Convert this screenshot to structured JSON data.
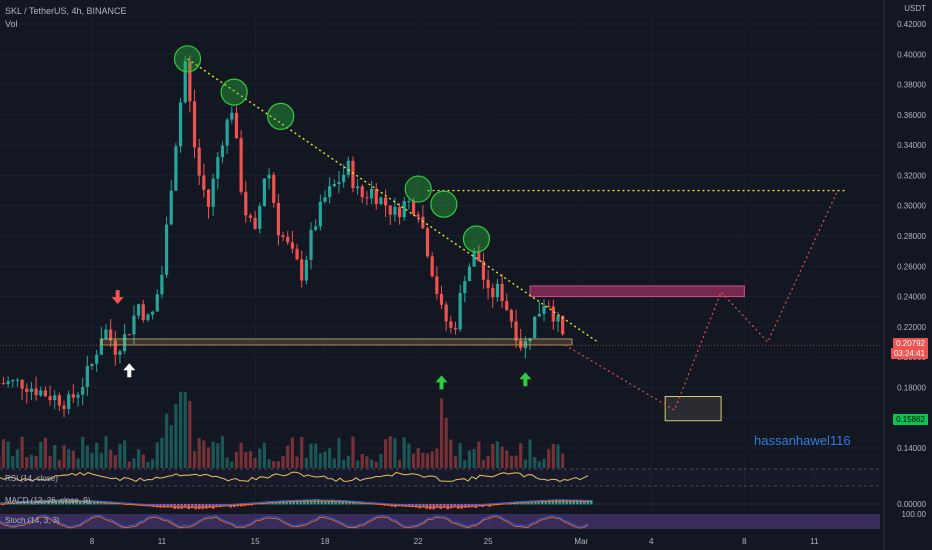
{
  "header": {
    "title": "SKL / TetherUS, 4h, BINANCE",
    "volume_label": "Vol",
    "unit": "USDT"
  },
  "signature": "hassanhawel116",
  "colors": {
    "background": "#131722",
    "bull": "#26a69a",
    "bear": "#ef5350",
    "trendline": "#e6e62e",
    "target_path": "#e05050",
    "price_tag": "#ef5350",
    "target_tag": "#00c853",
    "resistance_box": "#9b2d5e",
    "circle": "#2ecc40"
  },
  "price_tags": [
    {
      "value": "0.20792",
      "countdown": "03:24:41"
    },
    {
      "value": "0.15862"
    }
  ],
  "chart_data": {
    "type": "candlestick",
    "y_axis": {
      "ylim": [
        0.12,
        0.42
      ],
      "ticks": [
        "0.42000",
        "0.40000",
        "0.38000",
        "0.36000",
        "0.34000",
        "0.32000",
        "0.30000",
        "0.28000",
        "0.26000",
        "0.24000",
        "0.22000",
        "0.20000",
        "0.18000",
        "0.16000",
        "0.14000"
      ]
    },
    "x_axis": {
      "tick_labels": [
        "8",
        "11",
        "15",
        "18",
        "22",
        "25",
        "Mar",
        "4",
        "8",
        "11"
      ]
    },
    "price_path": [
      [
        "Feb 5",
        0.183
      ],
      [
        "Feb 6",
        0.176
      ],
      [
        "Feb 7",
        0.17
      ],
      [
        "Feb 7.5",
        0.18
      ],
      [
        "Feb 8",
        0.195
      ],
      [
        "Feb 8.5",
        0.22
      ],
      [
        "Feb 9",
        0.206
      ],
      [
        "Feb 9.5",
        0.215
      ],
      [
        "Feb 10",
        0.235
      ],
      [
        "Feb 10.5",
        0.222
      ],
      [
        "Feb 11",
        0.255
      ],
      [
        "Feb 11.5",
        0.33
      ],
      [
        "Feb 12",
        0.395
      ],
      [
        "Feb 12.5",
        0.325
      ],
      [
        "Feb 13",
        0.3
      ],
      [
        "Feb 13.5",
        0.34
      ],
      [
        "Feb 14",
        0.365
      ],
      [
        "Feb 14.5",
        0.3
      ],
      [
        "Feb 15",
        0.28
      ],
      [
        "Feb 15.5",
        0.33
      ],
      [
        "Feb 16",
        0.285
      ],
      [
        "Feb 17",
        0.255
      ],
      [
        "Feb 17.5",
        0.285
      ],
      [
        "Feb 18",
        0.305
      ],
      [
        "Feb 19",
        0.325
      ],
      [
        "Feb 19.5",
        0.305
      ],
      [
        "Feb 20",
        0.31
      ],
      [
        "Feb 21",
        0.295
      ],
      [
        "Feb 21.5",
        0.303
      ],
      [
        "Feb 22",
        0.298
      ],
      [
        "Feb 22.5",
        0.265
      ],
      [
        "Feb 23",
        0.23
      ],
      [
        "Feb 23.5",
        0.215
      ],
      [
        "Feb 24",
        0.255
      ],
      [
        "Feb 24.5",
        0.27
      ],
      [
        "Feb 25",
        0.24
      ],
      [
        "Feb 25.5",
        0.245
      ],
      [
        "Feb 26",
        0.225
      ],
      [
        "Feb 26.5",
        0.205
      ],
      [
        "Feb 27",
        0.225
      ],
      [
        "Feb 27.5",
        0.24
      ],
      [
        "Feb 28",
        0.222
      ],
      [
        "Feb 28.3",
        0.208
      ]
    ],
    "annotations": {
      "highs_circled": 6,
      "descending_trendline": "from Feb 12 high to Feb 29 near 0.210",
      "support_zone": [
        0.208,
        0.212
      ],
      "horizontal_line": 0.31,
      "resistance_zone": [
        0.24,
        0.247
      ],
      "target_box": [
        0.158,
        0.174
      ],
      "projected_path": [
        [
          "Mar 4",
          0.165
        ],
        [
          "Mar 6",
          0.243
        ],
        [
          "Mar 8",
          0.21
        ],
        [
          "Mar 11",
          0.31
        ]
      ],
      "up_arrows": [
        "Feb 9.5",
        "Feb 23",
        "Feb 26.5"
      ],
      "down_arrows": [
        "Feb 9"
      ]
    },
    "indicators": [
      {
        "name": "RSI (14, close)"
      },
      {
        "name": "MACD (12, 26, close, 9)",
        "value": "0.00000"
      },
      {
        "name": "Stoch (14, 3, 3)",
        "value": "100.00"
      }
    ]
  }
}
